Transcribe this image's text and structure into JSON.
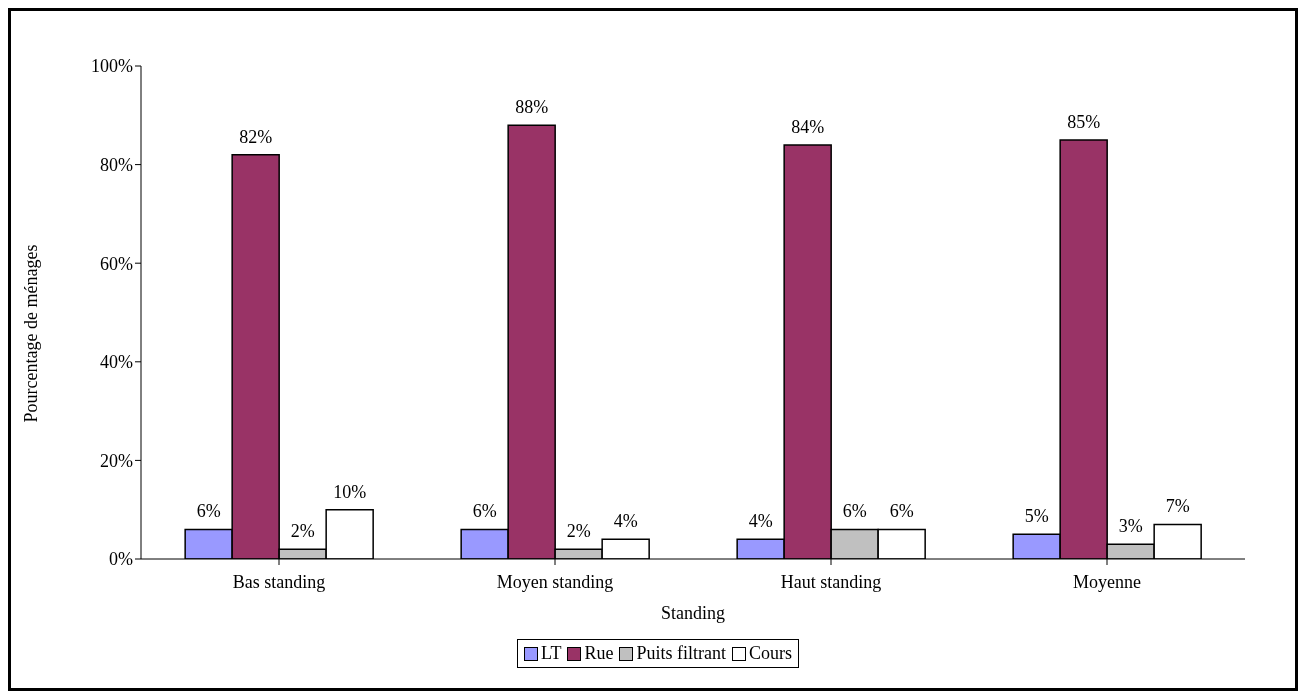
{
  "chart_data": {
    "type": "bar",
    "xlabel": "Standing",
    "ylabel": "Pourcentage de ménages",
    "categories": [
      "Bas standing",
      "Moyen standing",
      "Haut standing",
      "Moyenne"
    ],
    "series": [
      {
        "name": "LT",
        "color": "#9999ff",
        "values": [
          6,
          6,
          4,
          5
        ],
        "value_labels": [
          "6%",
          "6%",
          "4%",
          "5%"
        ]
      },
      {
        "name": "Rue",
        "color": "#993366",
        "values": [
          82,
          88,
          84,
          85
        ],
        "value_labels": [
          "82%",
          "88%",
          "84%",
          "85%"
        ]
      },
      {
        "name": "Puits filtrant",
        "color": "#c0c0c0",
        "values": [
          2,
          2,
          6,
          3
        ],
        "value_labels": [
          "2%",
          "2%",
          "6%",
          "3%"
        ]
      },
      {
        "name": "Cours",
        "color": "#ffffff",
        "values": [
          10,
          4,
          6,
          7
        ],
        "value_labels": [
          "10%",
          "4%",
          "6%",
          "7%"
        ]
      }
    ],
    "ylim": [
      0,
      100
    ],
    "yticks": [
      {
        "value": 0,
        "label": "0%"
      },
      {
        "value": 20,
        "label": "20%"
      },
      {
        "value": 40,
        "label": "40%"
      },
      {
        "value": 60,
        "label": "60%"
      },
      {
        "value": 80,
        "label": "80%"
      },
      {
        "value": 100,
        "label": "100%"
      }
    ],
    "grid": false,
    "legend": "bottom"
  }
}
